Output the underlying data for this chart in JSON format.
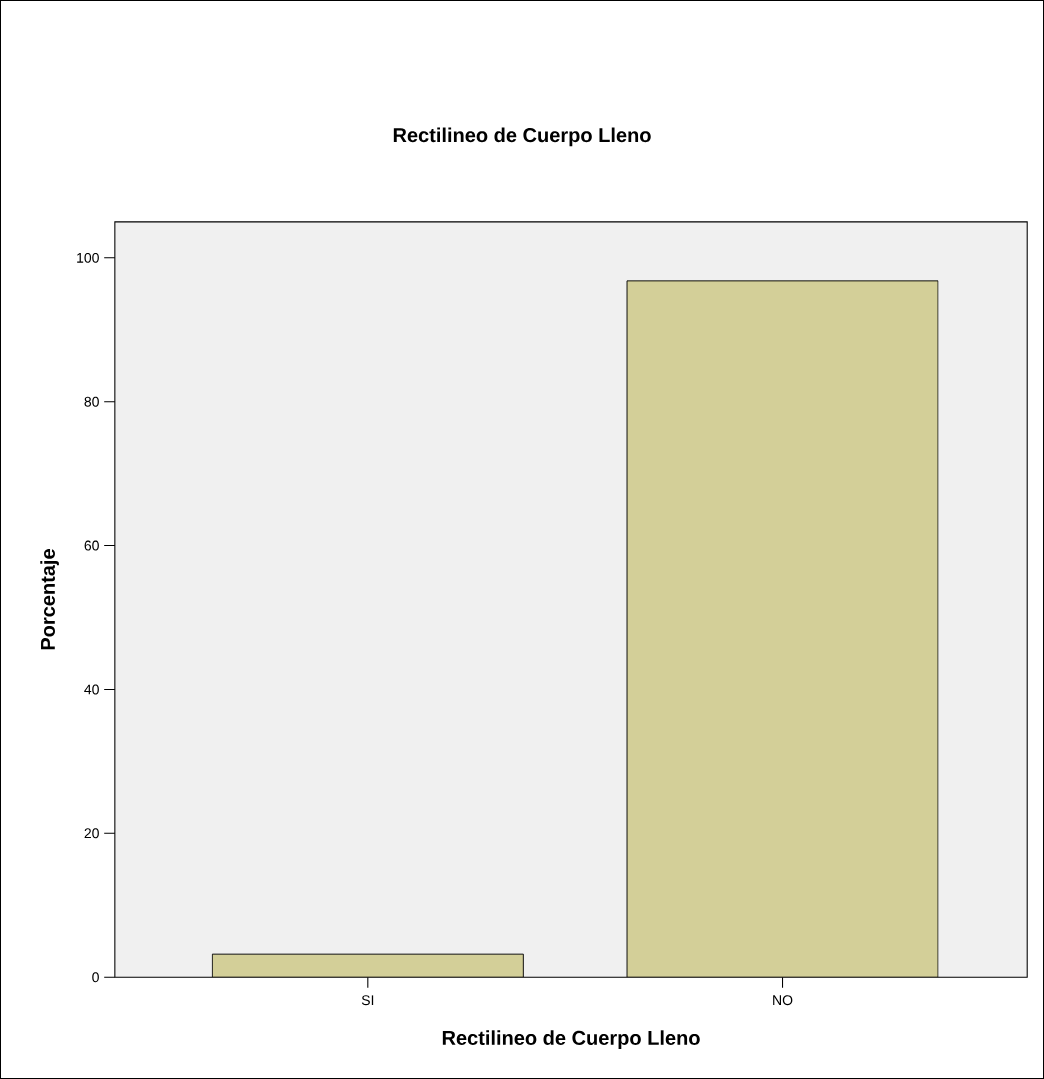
{
  "chart_data": {
    "type": "bar",
    "title": "Rectilineo de Cuerpo Lleno",
    "xlabel": "Rectilineo de Cuerpo Lleno",
    "ylabel": "Porcentaje",
    "categories": [
      "SI",
      "NO"
    ],
    "values": [
      3.2,
      96.8
    ],
    "color": "#d3cf98",
    "ylim": [
      0,
      105
    ],
    "yticks": [
      0,
      20,
      40,
      60,
      80,
      100
    ],
    "grid": false
  }
}
